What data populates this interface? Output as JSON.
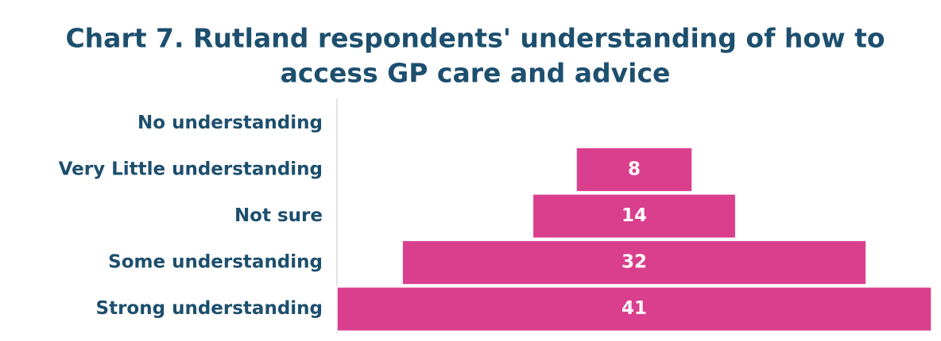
{
  "chart_data": {
    "type": "funnel",
    "title": [
      "Chart 7. Rutland respondents' understanding of how to",
      "access GP care and advice"
    ],
    "categories": [
      "No understanding",
      "Very Little understanding",
      "Not sure",
      "Some understanding",
      "Strong understanding"
    ],
    "values": [
      0,
      8,
      14,
      32,
      41
    ],
    "color": "#da3f8e"
  }
}
